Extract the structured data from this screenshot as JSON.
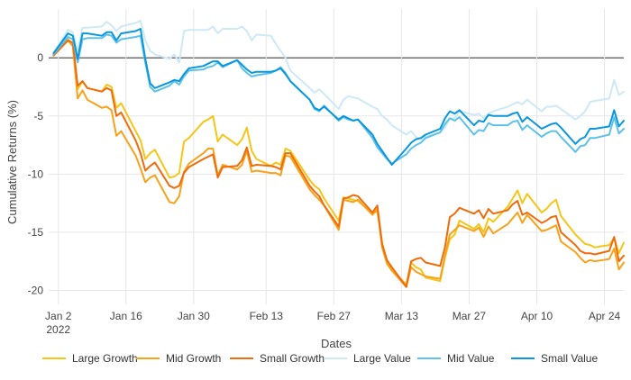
{
  "chart_data": {
    "type": "line",
    "title": "",
    "xlabel": "Dates",
    "ylabel": "Cumulative Returns (%)",
    "ylim": [
      -21.2,
      4.2
    ],
    "x_range_days": [
      -1,
      118
    ],
    "grid": true,
    "legend_position": "bottom",
    "x_ticks": [
      {
        "day": 1,
        "label": "Jan 2",
        "sublabel": "2022"
      },
      {
        "day": 15,
        "label": "Jan 16"
      },
      {
        "day": 29,
        "label": "Jan 30"
      },
      {
        "day": 44,
        "label": "Feb 13"
      },
      {
        "day": 58,
        "label": "Feb 27"
      },
      {
        "day": 72,
        "label": "Mar 13"
      },
      {
        "day": 86,
        "label": "Mar 27"
      },
      {
        "day": 100,
        "label": "Apr 10"
      },
      {
        "day": 114,
        "label": "Apr 24"
      }
    ],
    "y_ticks": [
      0,
      -5,
      -10,
      -15,
      -20
    ],
    "x_days": [
      0,
      3,
      4,
      5,
      6,
      7,
      10,
      11,
      12,
      13,
      14,
      17,
      18,
      19,
      20,
      21,
      24,
      25,
      26,
      27,
      28,
      31,
      32,
      33,
      34,
      35,
      38,
      39,
      40,
      41,
      42,
      45,
      46,
      47,
      48,
      49,
      53,
      54,
      55,
      56,
      59,
      60,
      61,
      62,
      63,
      66,
      67,
      68,
      69,
      70,
      73,
      74,
      75,
      76,
      77,
      80,
      81,
      82,
      83,
      84,
      87,
      88,
      89,
      90,
      91,
      94,
      95,
      96,
      97,
      98,
      101,
      102,
      103,
      104,
      105,
      108,
      109,
      110,
      111,
      112,
      115,
      116,
      117,
      118
    ],
    "series": [
      {
        "name": "Large Growth",
        "color": "#f5c518",
        "values": [
          0.2,
          1.6,
          1.2,
          -2.7,
          -2.0,
          -2.6,
          -2.9,
          -2.3,
          -2.5,
          -4.3,
          -3.9,
          -6.3,
          -7.1,
          -8.7,
          -8.2,
          -7.9,
          -10.3,
          -10.2,
          -9.9,
          -7.2,
          -6.9,
          -5.5,
          -5.3,
          -5.0,
          -7.2,
          -6.6,
          -7.5,
          -7.0,
          -6.0,
          -8.0,
          -8.7,
          -9.3,
          -9.0,
          -9.2,
          -7.8,
          -8.0,
          -10.5,
          -11.0,
          -11.3,
          -12.1,
          -14.0,
          -12.0,
          -12.1,
          -12.2,
          -12.3,
          -13.4,
          -13.2,
          -15.9,
          -17.6,
          -18.2,
          -19.5,
          -17.6,
          -18.0,
          -18.2,
          -18.9,
          -19.2,
          -17.2,
          -15.6,
          -15.2,
          -14.0,
          -14.7,
          -14.3,
          -15.0,
          -13.8,
          -14.1,
          -12.8,
          -12.1,
          -11.4,
          -12.5,
          -11.7,
          -13.3,
          -13.0,
          -12.5,
          -12.2,
          -13.6,
          -15.2,
          -15.6,
          -16.0,
          -16.1,
          -16.3,
          -16.1,
          -15.5,
          -16.8,
          -15.9
        ]
      },
      {
        "name": "Mid Growth",
        "color": "#f7a21b",
        "values": [
          0.3,
          1.5,
          1.0,
          -3.5,
          -2.8,
          -3.6,
          -4.3,
          -4.2,
          -4.5,
          -6.7,
          -6.3,
          -8.4,
          -9.5,
          -10.7,
          -10.3,
          -10.1,
          -12.4,
          -12.5,
          -11.9,
          -9.8,
          -9.1,
          -8.2,
          -7.8,
          -7.8,
          -10.1,
          -9.2,
          -9.6,
          -9.2,
          -8.0,
          -9.8,
          -9.7,
          -9.9,
          -9.9,
          -10.1,
          -8.4,
          -8.5,
          -11.3,
          -11.8,
          -12.2,
          -12.7,
          -14.8,
          -12.2,
          -12.3,
          -12.4,
          -12.2,
          -13.5,
          -13.0,
          -16.3,
          -17.7,
          -18.3,
          -19.7,
          -18.0,
          -18.4,
          -18.6,
          -18.8,
          -19.0,
          -17.0,
          -15.2,
          -14.8,
          -14.4,
          -14.9,
          -14.6,
          -15.4,
          -14.5,
          -15.1,
          -14.3,
          -13.8,
          -13.3,
          -14.2,
          -13.5,
          -14.9,
          -14.8,
          -14.6,
          -14.4,
          -15.8,
          -16.7,
          -17.2,
          -17.6,
          -17.4,
          -17.5,
          -17.3,
          -16.4,
          -18.2,
          -17.6
        ]
      },
      {
        "name": "Small Growth",
        "color": "#ee6c0c",
        "values": [
          0.2,
          1.5,
          1.3,
          -2.4,
          -2.0,
          -2.6,
          -2.9,
          -2.6,
          -2.8,
          -5.0,
          -4.7,
          -7.1,
          -8.2,
          -9.7,
          -9.3,
          -9.0,
          -11.0,
          -11.2,
          -11.0,
          -9.9,
          -9.4,
          -8.7,
          -8.5,
          -8.3,
          -10.3,
          -9.4,
          -9.3,
          -8.8,
          -7.7,
          -9.3,
          -9.2,
          -9.3,
          -9.4,
          -9.6,
          -8.2,
          -8.2,
          -11.0,
          -11.5,
          -11.9,
          -12.7,
          -14.5,
          -12.1,
          -12.0,
          -11.8,
          -11.9,
          -13.3,
          -12.7,
          -16.0,
          -17.4,
          -18.0,
          -19.7,
          -17.5,
          -17.3,
          -17.2,
          -17.6,
          -17.9,
          -16.3,
          -13.7,
          -13.4,
          -12.9,
          -13.4,
          -13.1,
          -13.8,
          -13.0,
          -13.4,
          -13.1,
          -12.6,
          -12.3,
          -13.5,
          -13.3,
          -14.2,
          -14.0,
          -13.7,
          -13.6,
          -15.0,
          -16.1,
          -16.6,
          -16.8,
          -16.8,
          -16.9,
          -16.6,
          -15.4,
          -17.5,
          -17.0
        ]
      },
      {
        "name": "Large Value",
        "color": "#cde9f7",
        "values": [
          0.4,
          2.4,
          2.2,
          0.6,
          2.6,
          2.6,
          2.7,
          3.1,
          2.8,
          2.3,
          2.7,
          3.0,
          3.2,
          1.5,
          0.6,
          0.3,
          -0.1,
          0.3,
          -0.4,
          2.3,
          2.4,
          2.4,
          2.4,
          2.7,
          2.1,
          2.5,
          2.5,
          2.7,
          2.3,
          1.5,
          2.0,
          1.9,
          1.2,
          0.6,
          0.0,
          -1.1,
          -2.6,
          -3.0,
          -2.7,
          -3.1,
          -4.4,
          -3.6,
          -3.3,
          -3.4,
          -3.5,
          -4.2,
          -4.4,
          -5.0,
          -5.3,
          -5.8,
          -6.6,
          -6.3,
          -6.8,
          -7.0,
          -6.8,
          -6.4,
          -6.0,
          -5.2,
          -5.2,
          -4.6,
          -4.9,
          -4.8,
          -5.2,
          -4.8,
          -4.6,
          -4.2,
          -4.0,
          -3.8,
          -4.0,
          -3.6,
          -4.6,
          -4.2,
          -4.2,
          -4.1,
          -4.4,
          -5.3,
          -5.0,
          -4.6,
          -3.8,
          -3.7,
          -3.5,
          -1.9,
          -3.2,
          -2.9
        ]
      },
      {
        "name": "Mid Value",
        "color": "#5ec1ea",
        "values": [
          0.3,
          1.8,
          1.6,
          -0.4,
          1.6,
          1.7,
          1.7,
          2.0,
          1.9,
          1.3,
          1.6,
          1.8,
          1.9,
          -0.4,
          -2.5,
          -2.9,
          -2.4,
          -2.0,
          -2.3,
          -1.6,
          -1.1,
          -1.0,
          -0.8,
          -0.7,
          -0.4,
          -0.8,
          -0.2,
          -0.9,
          -1.3,
          -1.6,
          -1.5,
          -1.3,
          -1.1,
          -0.8,
          -1.3,
          -2.0,
          -3.6,
          -4.4,
          -4.6,
          -4.1,
          -5.4,
          -5.1,
          -5.3,
          -5.4,
          -5.3,
          -6.9,
          -7.7,
          -8.2,
          -8.7,
          -9.1,
          -8.3,
          -7.8,
          -7.5,
          -7.3,
          -6.9,
          -6.4,
          -5.7,
          -5.2,
          -5.4,
          -5.1,
          -6.6,
          -6.2,
          -6.3,
          -5.6,
          -5.8,
          -5.8,
          -5.5,
          -5.4,
          -6.2,
          -5.8,
          -6.8,
          -6.5,
          -6.3,
          -6.3,
          -6.8,
          -8.1,
          -7.6,
          -7.5,
          -6.9,
          -6.9,
          -6.6,
          -5.1,
          -6.5,
          -6.1
        ]
      },
      {
        "name": "Small Value",
        "color": "#0a97de",
        "values": [
          0.4,
          2.1,
          1.9,
          -0.1,
          2.1,
          2.1,
          1.9,
          2.2,
          2.2,
          1.5,
          2.1,
          2.3,
          2.5,
          -0.1,
          -2.2,
          -2.6,
          -2.1,
          -1.9,
          -2.0,
          -1.4,
          -0.9,
          -0.7,
          -0.5,
          -0.3,
          -0.3,
          -0.7,
          -0.2,
          -0.6,
          -1.0,
          -1.3,
          -1.2,
          -1.2,
          -1.1,
          -0.9,
          -1.4,
          -2.0,
          -3.6,
          -4.3,
          -4.5,
          -4.2,
          -5.3,
          -5.0,
          -5.2,
          -5.4,
          -5.3,
          -6.6,
          -7.4,
          -8.0,
          -8.6,
          -9.2,
          -7.8,
          -7.3,
          -7.0,
          -6.9,
          -6.6,
          -6.1,
          -5.2,
          -4.6,
          -4.8,
          -4.5,
          -5.8,
          -5.4,
          -5.5,
          -4.9,
          -5.0,
          -5.0,
          -4.8,
          -4.7,
          -5.5,
          -5.1,
          -6.1,
          -5.9,
          -5.7,
          -5.6,
          -6.0,
          -7.4,
          -7.0,
          -6.8,
          -6.1,
          -6.1,
          -5.9,
          -4.5,
          -5.9,
          -5.4
        ]
      }
    ]
  }
}
